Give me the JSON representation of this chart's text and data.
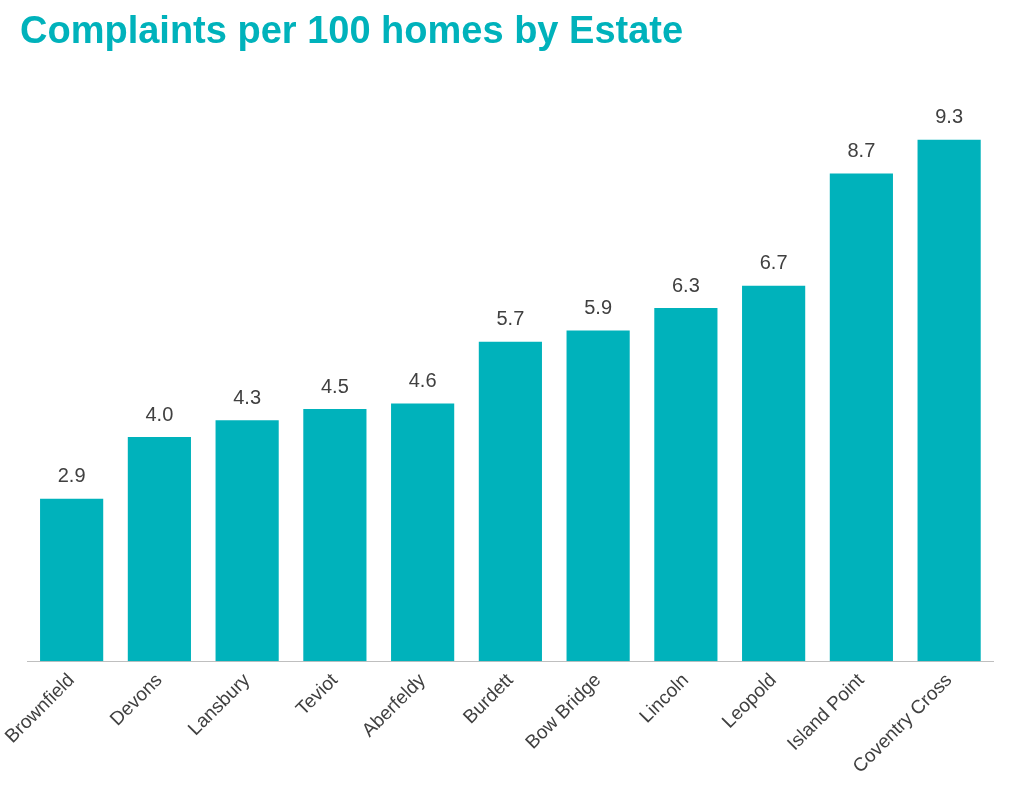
{
  "chart_data": {
    "type": "bar",
    "title": "Complaints per 100 homes by Estate",
    "categories": [
      "Brownfield",
      "Devons",
      "Lansbury",
      "Teviot",
      "Aberfeldy",
      "Burdett",
      "Bow Bridge",
      "Lincoln",
      "Leopold",
      "Island Point",
      "Coventry Cross"
    ],
    "values": [
      2.9,
      4.0,
      4.3,
      4.5,
      4.6,
      5.7,
      5.9,
      6.3,
      6.7,
      8.7,
      9.3
    ],
    "value_labels": [
      "2.9",
      "4.0",
      "4.3",
      "4.5",
      "4.6",
      "5.7",
      "5.9",
      "6.3",
      "6.7",
      "8.7",
      "9.3"
    ],
    "color": "#00b2bb",
    "grid": false,
    "legend": false
  }
}
